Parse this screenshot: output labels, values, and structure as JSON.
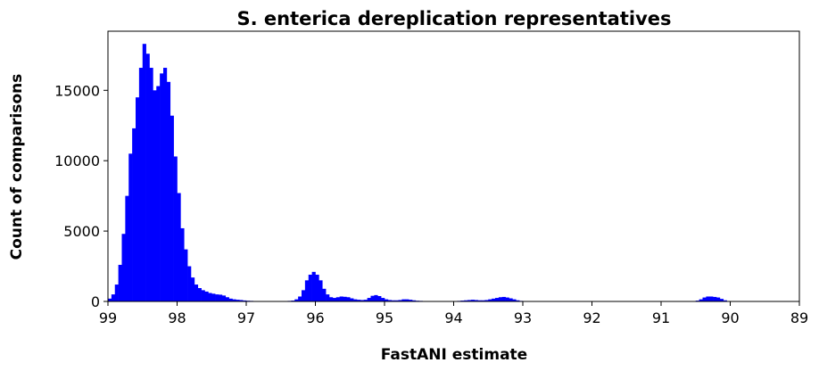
{
  "chart_data": {
    "type": "bar",
    "title": "S. enterica dereplication representatives",
    "xlabel": "FastANI estimate",
    "ylabel": "Count of comparisons",
    "xlim": [
      99,
      89
    ],
    "ylim": [
      0,
      19200
    ],
    "x_reversed": true,
    "bin_width": 0.05,
    "bar_color": "#0000ff",
    "grid": false,
    "legend": "none",
    "xticks": [
      99,
      98,
      97,
      96,
      95,
      94,
      93,
      92,
      91,
      90,
      89
    ],
    "yticks": [
      0,
      5000,
      10000,
      15000
    ],
    "x": [
      98.975,
      98.925,
      98.875,
      98.825,
      98.775,
      98.725,
      98.675,
      98.625,
      98.575,
      98.525,
      98.475,
      98.425,
      98.375,
      98.325,
      98.275,
      98.225,
      98.175,
      98.125,
      98.075,
      98.025,
      97.975,
      97.925,
      97.875,
      97.825,
      97.775,
      97.725,
      97.675,
      97.625,
      97.575,
      97.525,
      97.475,
      97.425,
      97.375,
      97.325,
      97.275,
      97.225,
      97.175,
      97.125,
      97.075,
      97.025,
      96.975,
      96.925,
      96.875,
      96.825,
      96.775,
      96.725,
      96.675,
      96.625,
      96.575,
      96.525,
      96.475,
      96.425,
      96.375,
      96.325,
      96.275,
      96.225,
      96.175,
      96.125,
      96.075,
      96.025,
      95.975,
      95.925,
      95.875,
      95.825,
      95.775,
      95.725,
      95.675,
      95.625,
      95.575,
      95.525,
      95.475,
      95.425,
      95.375,
      95.325,
      95.275,
      95.225,
      95.175,
      95.125,
      95.075,
      95.025,
      94.975,
      94.925,
      94.875,
      94.825,
      94.775,
      94.725,
      94.675,
      94.625,
      94.575,
      94.525,
      94.475,
      94.425,
      94.375,
      94.325,
      94.275,
      94.225,
      94.175,
      94.125,
      94.075,
      94.025,
      93.975,
      93.925,
      93.875,
      93.825,
      93.775,
      93.725,
      93.675,
      93.625,
      93.575,
      93.525,
      93.475,
      93.425,
      93.375,
      93.325,
      93.275,
      93.225,
      93.175,
      93.125,
      93.075,
      93.025,
      92.975,
      92.925,
      92.875,
      92.825,
      92.775,
      92.725,
      92.675,
      92.625,
      92.575,
      92.525,
      92.475,
      92.425,
      92.375,
      92.325,
      92.275,
      92.225,
      92.175,
      92.125,
      92.075,
      92.025,
      91.975,
      91.925,
      91.875,
      91.825,
      91.775,
      91.725,
      91.675,
      91.625,
      91.575,
      91.525,
      91.475,
      91.425,
      91.375,
      91.325,
      91.275,
      91.225,
      91.175,
      91.125,
      91.075,
      91.025,
      90.975,
      90.925,
      90.875,
      90.825,
      90.775,
      90.725,
      90.675,
      90.625,
      90.575,
      90.525,
      90.475,
      90.425,
      90.375,
      90.325,
      90.275,
      90.225,
      90.175,
      90.125,
      90.075,
      90.025
    ],
    "values": [
      200,
      500,
      1200,
      2600,
      4800,
      7500,
      10500,
      12300,
      14500,
      16600,
      18300,
      17600,
      16600,
      15000,
      15300,
      16200,
      16600,
      15600,
      13200,
      10300,
      7700,
      5200,
      3700,
      2500,
      1700,
      1200,
      950,
      800,
      700,
      600,
      550,
      500,
      480,
      420,
      300,
      200,
      150,
      120,
      100,
      70,
      50,
      40,
      30,
      25,
      20,
      20,
      20,
      20,
      20,
      20,
      30,
      30,
      40,
      60,
      150,
      350,
      800,
      1500,
      1900,
      2100,
      1900,
      1500,
      900,
      500,
      300,
      250,
      300,
      350,
      330,
      300,
      220,
      150,
      120,
      100,
      120,
      250,
      400,
      450,
      380,
      250,
      150,
      100,
      80,
      80,
      100,
      150,
      150,
      120,
      80,
      50,
      40,
      30,
      30,
      20,
      20,
      20,
      20,
      20,
      20,
      20,
      30,
      40,
      60,
      80,
      100,
      120,
      100,
      80,
      80,
      100,
      150,
      200,
      250,
      300,
      320,
      280,
      220,
      150,
      80,
      40,
      20,
      15,
      10,
      10,
      10,
      10,
      10,
      10,
      10,
      10,
      10,
      10,
      10,
      10,
      10,
      10,
      10,
      10,
      10,
      10,
      10,
      10,
      10,
      10,
      10,
      10,
      10,
      10,
      10,
      10,
      10,
      10,
      10,
      10,
      10,
      10,
      10,
      10,
      10,
      10,
      10,
      10,
      10,
      10,
      10,
      10,
      10,
      10,
      10,
      10,
      60,
      150,
      280,
      350,
      350,
      320,
      280,
      180,
      80,
      30
    ]
  }
}
